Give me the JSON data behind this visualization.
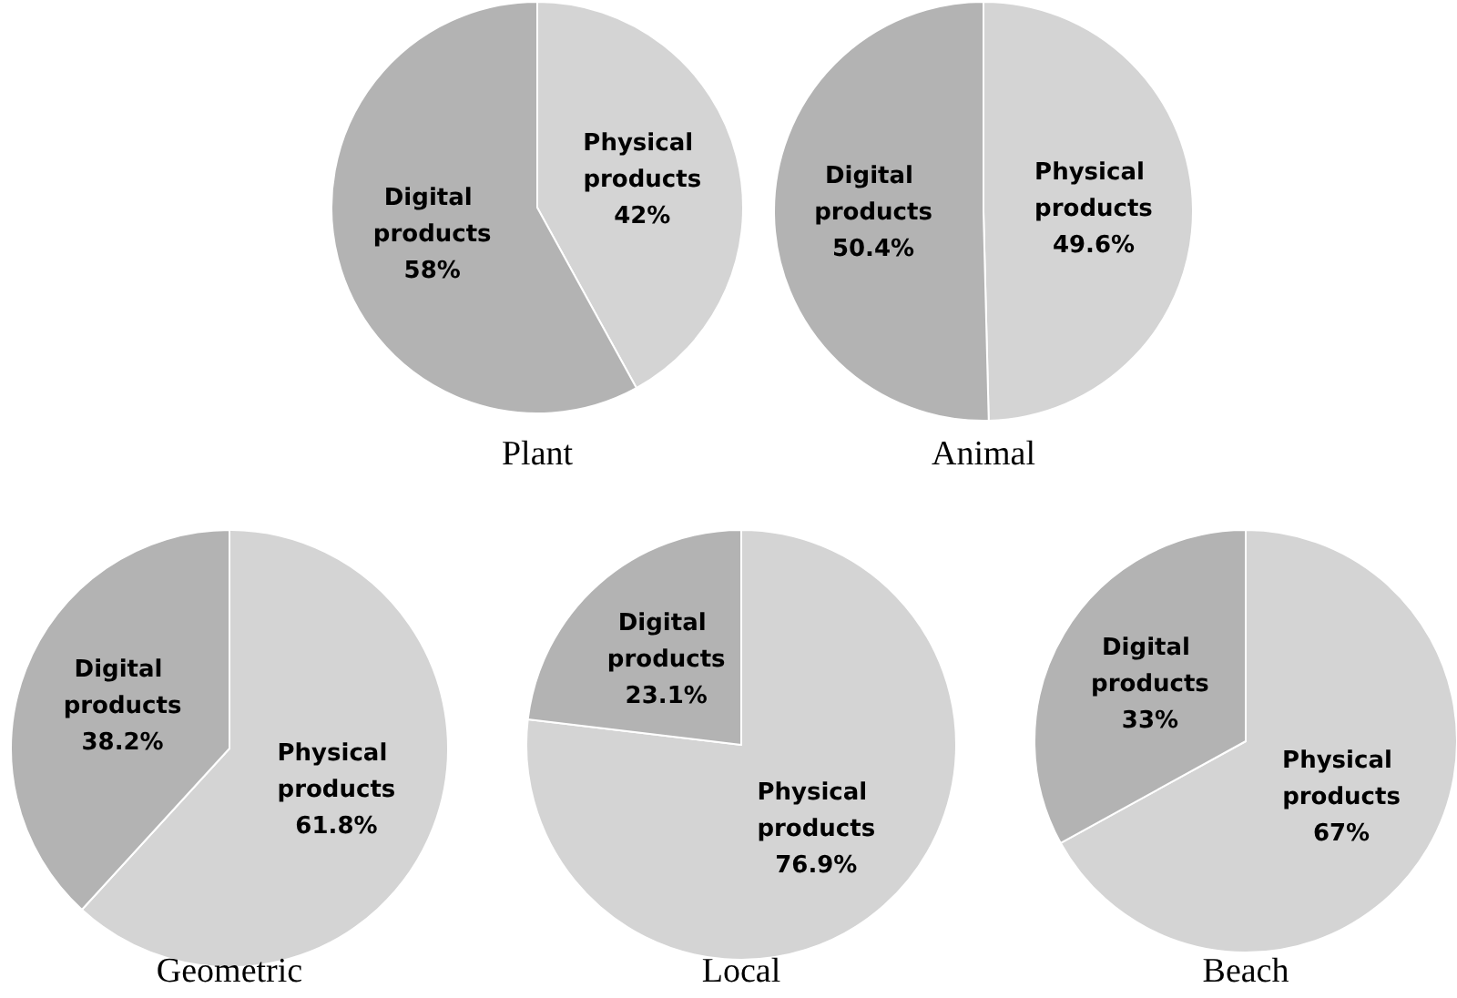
{
  "chart_data": [
    {
      "type": "pie",
      "title": "Plant",
      "categories": [
        "Physical products",
        "Digital products"
      ],
      "values": [
        42,
        58
      ],
      "value_labels": [
        "42%",
        "58%"
      ],
      "colors": [
        "#d4d4d4",
        "#b3b3b3"
      ]
    },
    {
      "type": "pie",
      "title": "Animal",
      "categories": [
        "Physical products",
        "Digital products"
      ],
      "values": [
        49.6,
        50.4
      ],
      "value_labels": [
        "49.6%",
        "50.4%"
      ],
      "colors": [
        "#d4d4d4",
        "#b3b3b3"
      ]
    },
    {
      "type": "pie",
      "title": "Geometric",
      "categories": [
        "Physical products",
        "Digital products"
      ],
      "values": [
        61.8,
        38.2
      ],
      "value_labels": [
        "61.8%",
        "38.2%"
      ],
      "colors": [
        "#d4d4d4",
        "#b3b3b3"
      ]
    },
    {
      "type": "pie",
      "title": "Local",
      "categories": [
        "Physical products",
        "Digital products"
      ],
      "values": [
        76.9,
        23.1
      ],
      "value_labels": [
        "76.9%",
        "23.1%"
      ],
      "colors": [
        "#d4d4d4",
        "#b3b3b3"
      ]
    },
    {
      "type": "pie",
      "title": "Beach",
      "categories": [
        "Physical products",
        "Digital products"
      ],
      "values": [
        67,
        33
      ],
      "value_labels": [
        "67%",
        "33%"
      ],
      "colors": [
        "#d4d4d4",
        "#b3b3b3"
      ]
    }
  ]
}
